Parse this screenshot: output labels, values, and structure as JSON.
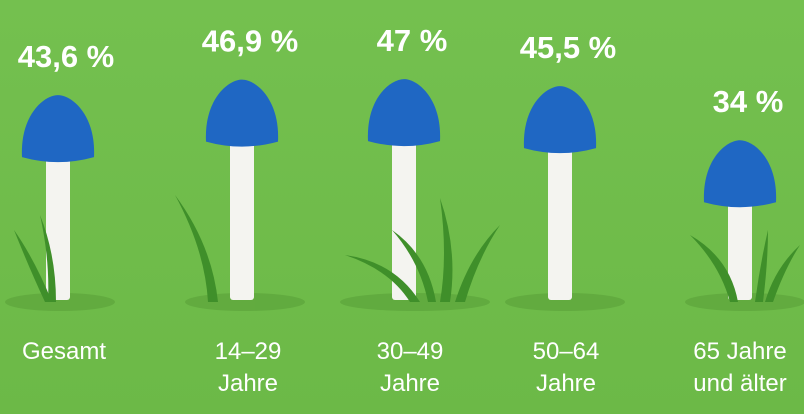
{
  "chart_data": {
    "type": "bar",
    "categories": [
      "Gesamt",
      "14–29 Jahre",
      "30–49 Jahre",
      "50–64 Jahre",
      "65 Jahre und älter"
    ],
    "values": [
      43.6,
      46.9,
      47,
      45.5,
      34
    ],
    "value_labels": [
      "43,6 %",
      "46,9 %",
      "47 %",
      "45,5 %",
      "34 %"
    ],
    "color": "#1f67c3"
  }
}
